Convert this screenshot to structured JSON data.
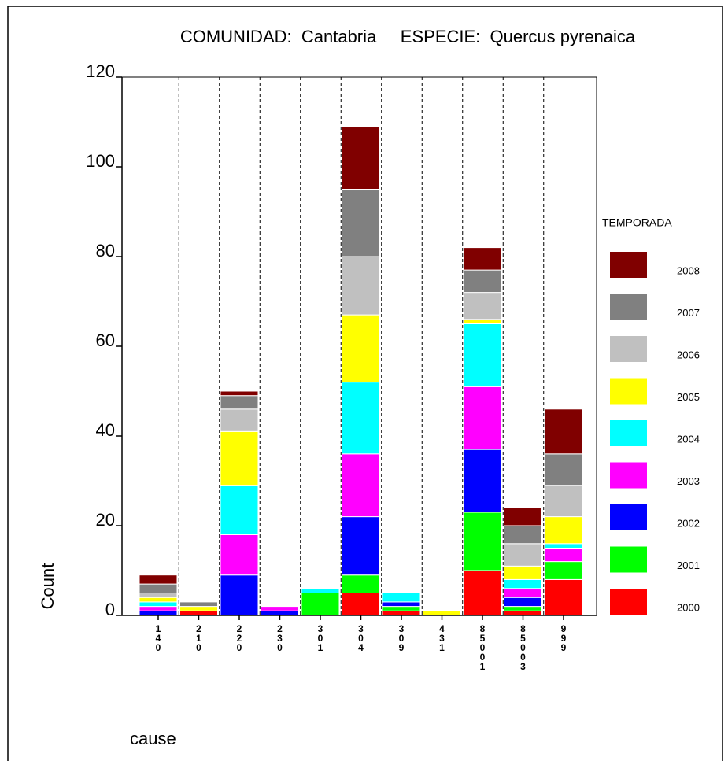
{
  "chart_data": {
    "type": "stacked_bar",
    "title": "COMUNIDAD:  Cantabria     ESPECIE:  Quercus pyrenaica",
    "x_label": "cause",
    "y_label": "Count",
    "legend_title": "TEMPORADA",
    "categories": [
      "140",
      "210",
      "220",
      "230",
      "301",
      "304",
      "309",
      "431",
      "85001",
      "85003",
      "999"
    ],
    "series": [
      {
        "name": "2000",
        "color": "#ff0000",
        "values": [
          0,
          1,
          0,
          0,
          0,
          5,
          1,
          0,
          10,
          1,
          8
        ]
      },
      {
        "name": "2001",
        "color": "#00ff00",
        "values": [
          0,
          0,
          0,
          0,
          5,
          4,
          1,
          0,
          13,
          1,
          4
        ]
      },
      {
        "name": "2002",
        "color": "#0000ff",
        "values": [
          1,
          0,
          9,
          1,
          0,
          13,
          1,
          0,
          14,
          2,
          0
        ]
      },
      {
        "name": "2003",
        "color": "#ff00ff",
        "values": [
          1,
          0,
          9,
          1,
          0,
          14,
          0,
          0,
          14,
          2,
          3
        ]
      },
      {
        "name": "2004",
        "color": "#00ffff",
        "values": [
          1,
          0,
          11,
          0,
          1,
          16,
          2,
          0,
          14,
          2,
          1
        ]
      },
      {
        "name": "2005",
        "color": "#ffff00",
        "values": [
          1,
          1,
          12,
          0,
          0,
          15,
          0,
          1,
          1,
          3,
          6
        ]
      },
      {
        "name": "2006",
        "color": "#c0c0c0",
        "values": [
          1,
          0,
          5,
          0,
          0,
          13,
          0,
          0,
          6,
          5,
          7
        ]
      },
      {
        "name": "2007",
        "color": "#808080",
        "values": [
          2,
          1,
          3,
          0,
          0,
          15,
          0,
          0,
          5,
          4,
          7
        ]
      },
      {
        "name": "2008",
        "color": "#800000",
        "values": [
          2,
          0,
          1,
          0,
          0,
          14,
          0,
          0,
          5,
          4,
          10
        ]
      }
    ],
    "ylim": [
      0,
      120
    ],
    "yticks": [
      0,
      20,
      40,
      60,
      80,
      100,
      120
    ],
    "legend": "right"
  }
}
